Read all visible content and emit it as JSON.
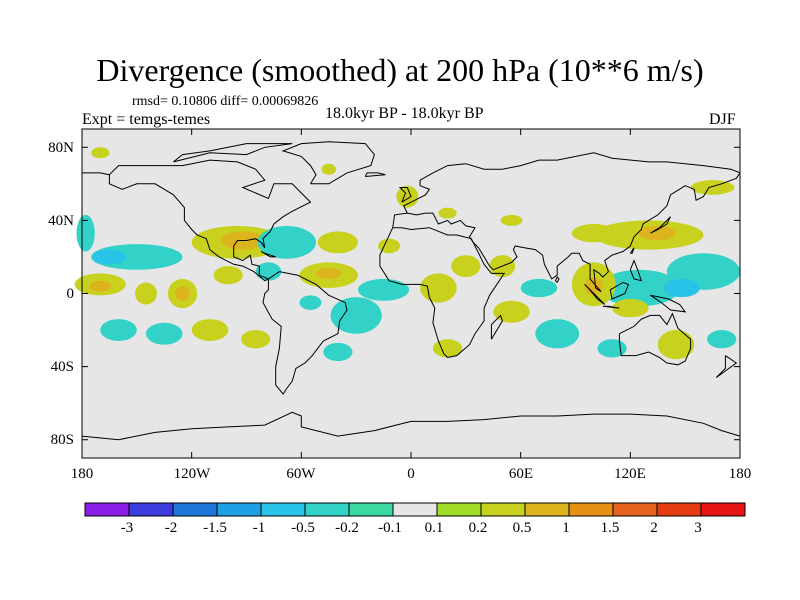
{
  "title": "Divergence (smoothed) at 200 hPa (10**6 m/s)",
  "stats": "rmsd= 0.10806  diff= 0.00069826",
  "experiment": "Expt = temgs-temes",
  "period": "18.0kyr BP - 18.0kyr BP",
  "season": "DJF",
  "map": {
    "lat_ticks": [
      "80N",
      "40N",
      "0",
      "40S",
      "80S"
    ],
    "lon_ticks": [
      "180",
      "120W",
      "60W",
      "0",
      "60E",
      "120E",
      "180"
    ],
    "background_color": "#e6e6e6",
    "coast_color": "#000000"
  },
  "colorbar": {
    "labels": [
      "-3",
      "-2",
      "-1.5",
      "-1",
      "-0.5",
      "-0.2",
      "-0.1",
      "0.1",
      "0.2",
      "0.5",
      "1",
      "1.5",
      "2",
      "3"
    ],
    "colors": [
      "#8a1ee6",
      "#3c3cdc",
      "#1e78dc",
      "#1ea0e6",
      "#28c3e6",
      "#32d2c8",
      "#3cd8a0",
      "#e6e6e6",
      "#a0dc28",
      "#c8d21e",
      "#dcb41e",
      "#e69114",
      "#e6641e",
      "#e63c14",
      "#e61414"
    ]
  },
  "anomalies": [
    {
      "lon": -170,
      "lat": 77,
      "rx": 5,
      "ry": 3,
      "value": 0.2
    },
    {
      "lon": -45,
      "lat": 68,
      "rx": 4,
      "ry": 3,
      "value": 0.2
    },
    {
      "lon": -2,
      "lat": 53,
      "rx": 6,
      "ry": 6,
      "value": 0.2
    },
    {
      "lon": 165,
      "lat": 58,
      "rx": 12,
      "ry": 4,
      "value": 0.2
    },
    {
      "lon": 20,
      "lat": 44,
      "rx": 5,
      "ry": 3,
      "value": 0.2
    },
    {
      "lon": 55,
      "lat": 40,
      "rx": 6,
      "ry": 3,
      "value": 0.2
    },
    {
      "lon": -178,
      "lat": 33,
      "rx": 5,
      "ry": 10,
      "value": -0.5
    },
    {
      "lon": -150,
      "lat": 20,
      "rx": 25,
      "ry": 7,
      "value": -0.5
    },
    {
      "lon": -165,
      "lat": 20,
      "rx": 9,
      "ry": 4,
      "value": -1.0
    },
    {
      "lon": -95,
      "lat": 28,
      "rx": 25,
      "ry": 9,
      "value": 0.2
    },
    {
      "lon": -92,
      "lat": 29,
      "rx": 12,
      "ry": 5,
      "value": 0.5
    },
    {
      "lon": -68,
      "lat": 28,
      "rx": 16,
      "ry": 9,
      "value": -0.5
    },
    {
      "lon": -40,
      "lat": 28,
      "rx": 11,
      "ry": 6,
      "value": 0.2
    },
    {
      "lon": -12,
      "lat": 26,
      "rx": 6,
      "ry": 4,
      "value": 0.2
    },
    {
      "lon": -170,
      "lat": 5,
      "rx": 14,
      "ry": 6,
      "value": 0.2
    },
    {
      "lon": -170,
      "lat": 4,
      "rx": 6,
      "ry": 3,
      "value": 0.5
    },
    {
      "lon": -145,
      "lat": 0,
      "rx": 6,
      "ry": 6,
      "value": 0.2
    },
    {
      "lon": -125,
      "lat": 0,
      "rx": 8,
      "ry": 8,
      "value": 0.2
    },
    {
      "lon": -125,
      "lat": 0,
      "rx": 4,
      "ry": 4,
      "value": 0.5
    },
    {
      "lon": -100,
      "lat": 10,
      "rx": 8,
      "ry": 5,
      "value": 0.2
    },
    {
      "lon": -78,
      "lat": 12,
      "rx": 7,
      "ry": 5,
      "value": -0.5
    },
    {
      "lon": -45,
      "lat": 10,
      "rx": 16,
      "ry": 7,
      "value": 0.2
    },
    {
      "lon": -45,
      "lat": 11,
      "rx": 7,
      "ry": 3,
      "value": 0.5
    },
    {
      "lon": -55,
      "lat": -5,
      "rx": 6,
      "ry": 4,
      "value": -0.5
    },
    {
      "lon": -15,
      "lat": 2,
      "rx": 14,
      "ry": 6,
      "value": -0.5
    },
    {
      "lon": -30,
      "lat": -12,
      "rx": 14,
      "ry": 10,
      "value": -0.5
    },
    {
      "lon": 30,
      "lat": 15,
      "rx": 8,
      "ry": 6,
      "value": 0.2
    },
    {
      "lon": 15,
      "lat": 3,
      "rx": 10,
      "ry": 8,
      "value": 0.2
    },
    {
      "lon": 50,
      "lat": 15,
      "rx": 7,
      "ry": 6,
      "value": 0.2
    },
    {
      "lon": 70,
      "lat": 3,
      "rx": 10,
      "ry": 5,
      "value": -0.5
    },
    {
      "lon": 55,
      "lat": -10,
      "rx": 10,
      "ry": 6,
      "value": 0.2
    },
    {
      "lon": 80,
      "lat": -22,
      "rx": 12,
      "ry": 8,
      "value": -0.5
    },
    {
      "lon": 100,
      "lat": 33,
      "rx": 12,
      "ry": 5,
      "value": 0.2
    },
    {
      "lon": 130,
      "lat": 32,
      "rx": 30,
      "ry": 8,
      "value": 0.2
    },
    {
      "lon": 135,
      "lat": 33,
      "rx": 10,
      "ry": 4,
      "value": 0.5
    },
    {
      "lon": 160,
      "lat": 12,
      "rx": 20,
      "ry": 10,
      "value": -0.5
    },
    {
      "lon": 125,
      "lat": 3,
      "rx": 22,
      "ry": 10,
      "value": -0.5
    },
    {
      "lon": 148,
      "lat": 3,
      "rx": 10,
      "ry": 5,
      "value": -1.0
    },
    {
      "lon": 100,
      "lat": 5,
      "rx": 12,
      "ry": 12,
      "value": 0.2
    },
    {
      "lon": 100,
      "lat": 4,
      "rx": 5,
      "ry": 5,
      "value": 0.5
    },
    {
      "lon": 120,
      "lat": -8,
      "rx": 10,
      "ry": 5,
      "value": 0.2
    },
    {
      "lon": 145,
      "lat": -28,
      "rx": 10,
      "ry": 8,
      "value": 0.2
    },
    {
      "lon": -160,
      "lat": -20,
      "rx": 10,
      "ry": 6,
      "value": -0.5
    },
    {
      "lon": -135,
      "lat": -22,
      "rx": 10,
      "ry": 6,
      "value": -0.5
    },
    {
      "lon": -110,
      "lat": -20,
      "rx": 10,
      "ry": 6,
      "value": 0.2
    },
    {
      "lon": -85,
      "lat": -25,
      "rx": 8,
      "ry": 5,
      "value": 0.2
    },
    {
      "lon": -40,
      "lat": -32,
      "rx": 8,
      "ry": 5,
      "value": -0.5
    },
    {
      "lon": 20,
      "lat": -30,
      "rx": 8,
      "ry": 5,
      "value": 0.2
    },
    {
      "lon": 110,
      "lat": -30,
      "rx": 8,
      "ry": 5,
      "value": -0.5
    },
    {
      "lon": 170,
      "lat": -25,
      "rx": 8,
      "ry": 5,
      "value": -0.5
    }
  ]
}
